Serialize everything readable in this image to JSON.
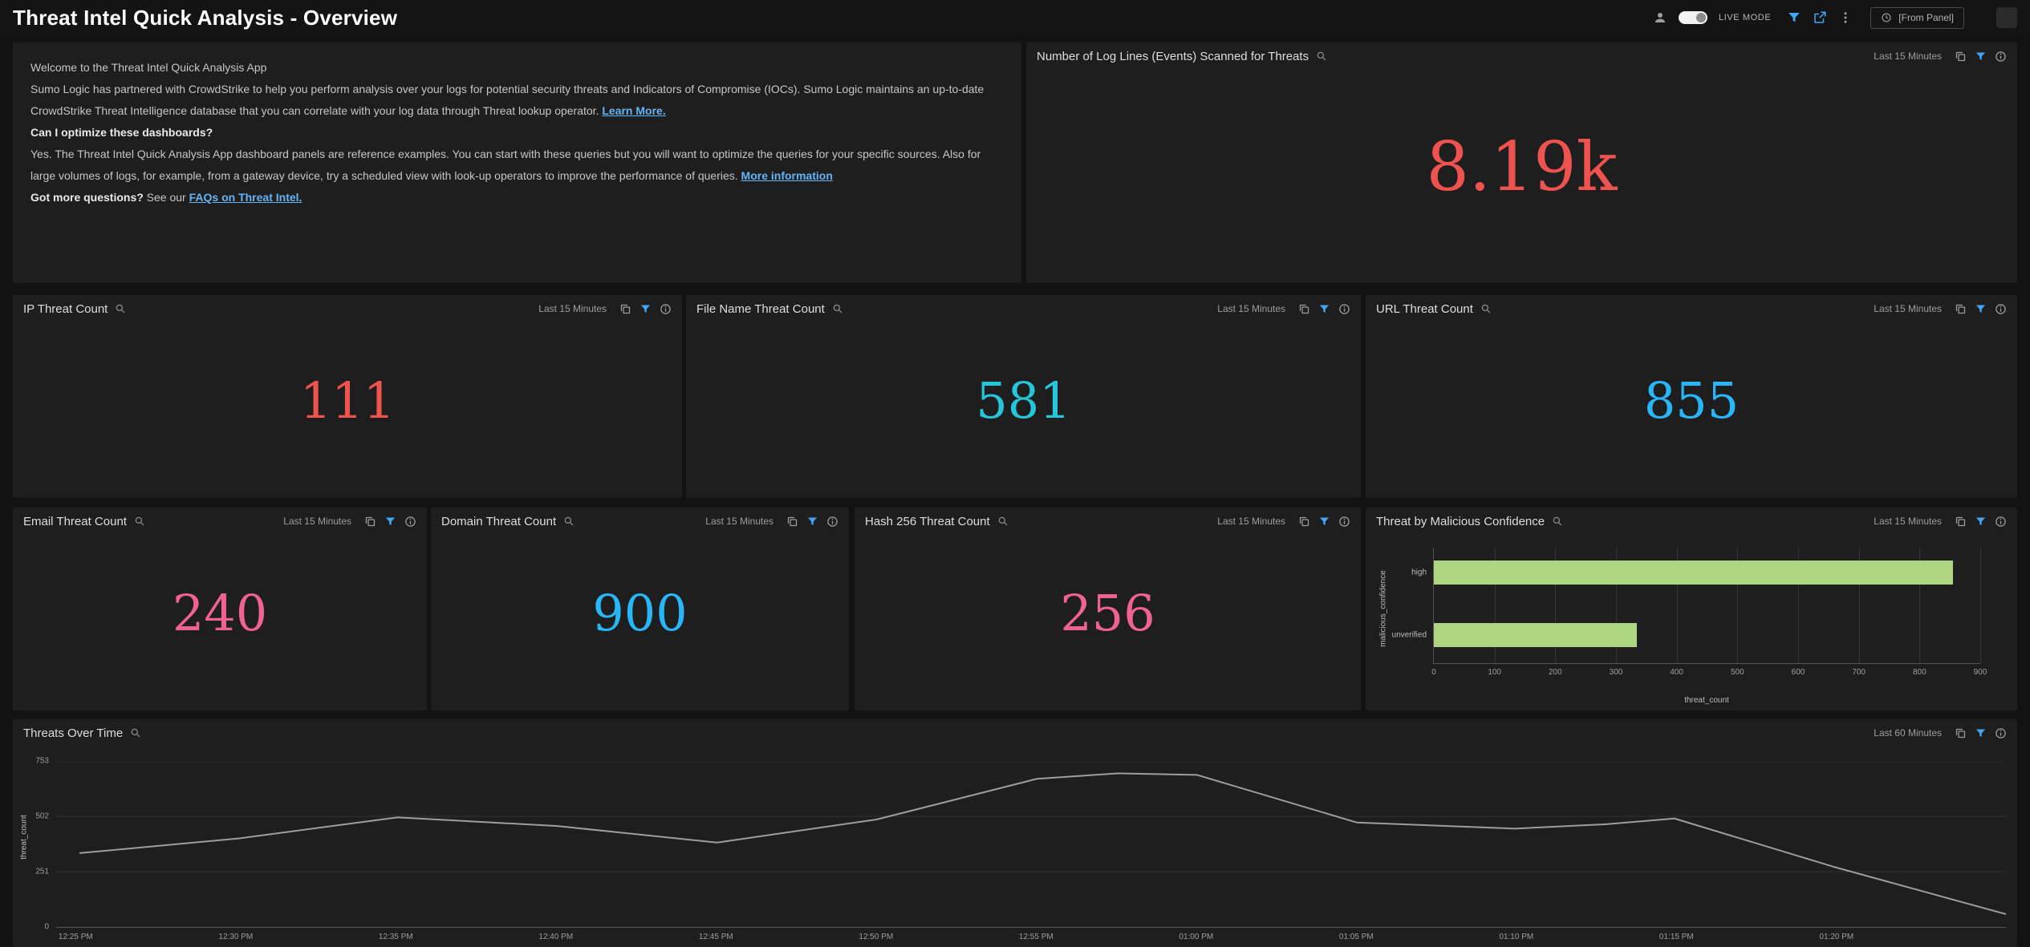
{
  "header": {
    "title": "Threat Intel Quick Analysis - Overview",
    "live_mode_label": "LIVE MODE",
    "time_range_value": "[From Panel]"
  },
  "colors": {
    "accent_blue": "#42a5f5",
    "link_blue": "#64b5f6",
    "counter_red": "#ef5350",
    "counter_teal": "#26c6da",
    "counter_blue": "#29b6f6",
    "counter_pink": "#f06292",
    "bar_green": "#aed581",
    "line_gray": "#9e9e9e",
    "panel_bg": "#1e1e1e",
    "page_bg": "#121212"
  },
  "welcome": {
    "title": "Welcome to the Threat Intel Quick Analysis App",
    "para1_text": "Sumo Logic has partnered with CrowdStrike to help you perform analysis over your logs for potential security threats and Indicators of Compromise (IOCs). Sumo Logic maintains an up-to-date CrowdStrike Threat Intelligence database that you can correlate with your log data through Threat lookup operator.",
    "para1_link": "Learn More.",
    "q1": "Can I optimize these dashboards?",
    "para2_text": "Yes. The Threat Intel Quick Analysis App dashboard panels are reference examples. You can start with these queries but you will want to optimize the queries for your specific sources. Also for large volumes of logs, for example, from a gateway device, try a scheduled view with look-up operators to improve the performance of queries.",
    "para2_link": "More information",
    "q2": "Got more questions?",
    "q2_mid": " See our ",
    "q2_link": "FAQs on Threat Intel."
  },
  "panels": {
    "log_lines": {
      "title": "Number of Log Lines (Events) Scanned for Threats",
      "time_range": "Last 15 Minutes",
      "value": "8.19k",
      "color": "#ef5350"
    },
    "ip": {
      "title": "IP Threat Count",
      "time_range": "Last 15 Minutes",
      "value": "111",
      "color": "#ef5350"
    },
    "file_name": {
      "title": "File Name Threat Count",
      "time_range": "Last 15 Minutes",
      "value": "581",
      "color": "#26c6da"
    },
    "url": {
      "title": "URL Threat Count",
      "time_range": "Last 15 Minutes",
      "value": "855",
      "color": "#29b6f6"
    },
    "email": {
      "title": "Email Threat Count",
      "time_range": "Last 15 Minutes",
      "value": "240",
      "color": "#f06292"
    },
    "domain": {
      "title": "Domain Threat Count",
      "time_range": "Last 15 Minutes",
      "value": "900",
      "color": "#29b6f6"
    },
    "hash": {
      "title": "Hash 256 Threat Count",
      "time_range": "Last 15 Minutes",
      "value": "256",
      "color": "#f06292"
    },
    "confidence": {
      "title": "Threat by Malicious Confidence",
      "time_range": "Last 15 Minutes"
    },
    "over_time": {
      "title": "Threats Over Time",
      "time_range": "Last 60 Minutes"
    }
  },
  "chart_data": [
    {
      "id": "threat-by-malicious-confidence",
      "type": "bar",
      "orientation": "horizontal",
      "title": "Threat by Malicious Confidence",
      "categories": [
        "high",
        "unverified"
      ],
      "values": [
        855,
        335
      ],
      "xlabel": "threat_count",
      "ylabel": "malicious_confidence",
      "xlim": [
        0,
        900
      ],
      "xticks": [
        0,
        100,
        200,
        300,
        400,
        500,
        600,
        700,
        800,
        900
      ],
      "grid": "vertical",
      "legend": "none",
      "bar_color": "#aed581"
    },
    {
      "id": "threats-over-time",
      "type": "line",
      "title": "Threats Over Time",
      "xlabel": "",
      "ylabel": "threat_count",
      "ylim": [
        0,
        753
      ],
      "yticks": [
        0,
        251,
        502,
        753
      ],
      "xticks": [
        "12:25 PM",
        "12:30 PM",
        "12:35 PM",
        "12:40 PM",
        "12:45 PM",
        "12:50 PM",
        "12:55 PM",
        "01:00 PM",
        "01:05 PM",
        "01:10 PM",
        "01:15 PM",
        "01:20 PM"
      ],
      "grid": "horizontal",
      "legend": "none",
      "line_color": "#9e9e9e",
      "points": [
        {
          "t": 0.012,
          "v": 335
        },
        {
          "t": 0.094,
          "v": 402
        },
        {
          "t": 0.175,
          "v": 497
        },
        {
          "t": 0.257,
          "v": 458
        },
        {
          "t": 0.339,
          "v": 383
        },
        {
          "t": 0.421,
          "v": 488
        },
        {
          "t": 0.503,
          "v": 672
        },
        {
          "t": 0.545,
          "v": 697
        },
        {
          "t": 0.585,
          "v": 690
        },
        {
          "t": 0.667,
          "v": 474
        },
        {
          "t": 0.748,
          "v": 446
        },
        {
          "t": 0.795,
          "v": 466
        },
        {
          "t": 0.83,
          "v": 492
        },
        {
          "t": 0.912,
          "v": 272
        },
        {
          "t": 1.0,
          "v": 58
        }
      ]
    }
  ]
}
